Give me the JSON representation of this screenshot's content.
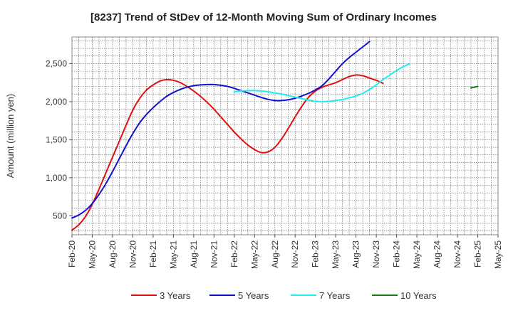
{
  "chart_data": {
    "type": "line",
    "title": "[8237]  Trend of StDev of 12-Month Moving Sum of Ordinary Incomes",
    "xlabel": "",
    "ylabel": "Amount (million yen)",
    "ylim": [
      250,
      2850
    ],
    "yticks": [
      500,
      1000,
      1500,
      2000,
      2500
    ],
    "ytick_labels": [
      "500",
      "1,000",
      "1,500",
      "2,000",
      "2,500"
    ],
    "x_categories": [
      "Feb-20",
      "May-20",
      "Aug-20",
      "Nov-20",
      "Feb-21",
      "May-21",
      "Aug-21",
      "Nov-21",
      "Feb-22",
      "May-22",
      "Aug-22",
      "Nov-22",
      "Feb-23",
      "May-23",
      "Aug-23",
      "Nov-23",
      "Feb-24",
      "May-24",
      "Aug-24",
      "Nov-24",
      "Feb-25",
      "May-25"
    ],
    "grid": true,
    "legend_position": "bottom",
    "series": [
      {
        "name": "3 Years",
        "color": "#dd1111",
        "start_index": 0,
        "values": [
          310,
          380,
          490,
          650,
          850,
          1060,
          1270,
          1480,
          1690,
          1890,
          2040,
          2150,
          2220,
          2270,
          2290,
          2280,
          2250,
          2200,
          2140,
          2070,
          1990,
          1900,
          1800,
          1700,
          1600,
          1510,
          1430,
          1370,
          1330,
          1340,
          1400,
          1510,
          1650,
          1800,
          1940,
          2060,
          2140,
          2190,
          2220,
          2250,
          2290,
          2330,
          2350,
          2340,
          2310,
          2280,
          2240
        ]
      },
      {
        "name": "5 Years",
        "color": "#1111cc",
        "start_index": 0,
        "values": [
          470,
          510,
          570,
          660,
          780,
          920,
          1080,
          1250,
          1420,
          1580,
          1720,
          1830,
          1920,
          2000,
          2070,
          2120,
          2160,
          2190,
          2210,
          2220,
          2225,
          2225,
          2215,
          2200,
          2175,
          2145,
          2115,
          2085,
          2055,
          2030,
          2015,
          2015,
          2025,
          2045,
          2075,
          2110,
          2155,
          2210,
          2300,
          2400,
          2500,
          2580,
          2650,
          2720,
          2790
        ]
      },
      {
        "name": "7 Years",
        "color": "#22eeee",
        "start_index": 24,
        "values": [
          2130,
          2140,
          2145,
          2145,
          2140,
          2130,
          2115,
          2100,
          2080,
          2060,
          2040,
          2020,
          2005,
          2000,
          2005,
          2015,
          2030,
          2050,
          2075,
          2110,
          2160,
          2220,
          2290,
          2350,
          2410,
          2460,
          2500
        ]
      },
      {
        "name": "10 Years",
        "color": "#1a7a1a",
        "start_index": 59,
        "values": [
          2180,
          2200
        ]
      }
    ]
  }
}
